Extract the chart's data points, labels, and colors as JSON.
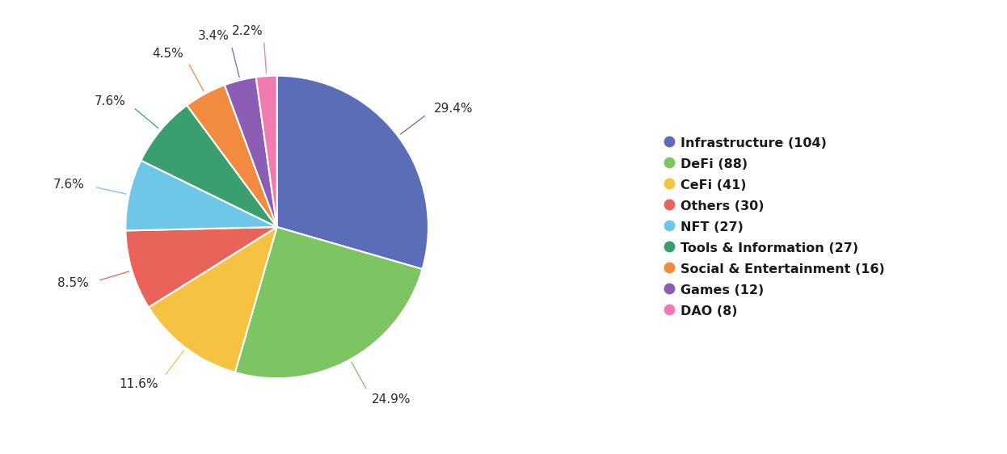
{
  "labels": [
    "Infrastructure (104)",
    "DeFi (88)",
    "CeFi (41)",
    "Others (30)",
    "NFT (27)",
    "Tools & Information (27)",
    "Social & Entertainment (16)",
    "Games (12)",
    "DAO (8)"
  ],
  "values": [
    29.4,
    24.9,
    11.6,
    8.5,
    7.6,
    7.6,
    4.5,
    3.4,
    2.2
  ],
  "colors": [
    "#5B6DB8",
    "#7DC462",
    "#F5C242",
    "#E8635A",
    "#6EC6E8",
    "#3A9E6F",
    "#F28A40",
    "#8B5DB5",
    "#F07BB0"
  ],
  "pct_labels": [
    "29.4%",
    "24.9%",
    "11.6%",
    "8.5%",
    "7.6%",
    "7.6%",
    "4.5%",
    "3.4%",
    "2.2%"
  ],
  "background_color": "#ffffff",
  "legend_labels": [
    "Infrastructure (104)",
    "DeFi (88)",
    "CeFi (41)",
    "Others (30)",
    "NFT (27)",
    "Tools & Information (27)",
    "Social & Entertainment (16)",
    "Games (12)",
    "DAO (8)"
  ],
  "label_fontsize": 11,
  "legend_fontsize": 11.5
}
